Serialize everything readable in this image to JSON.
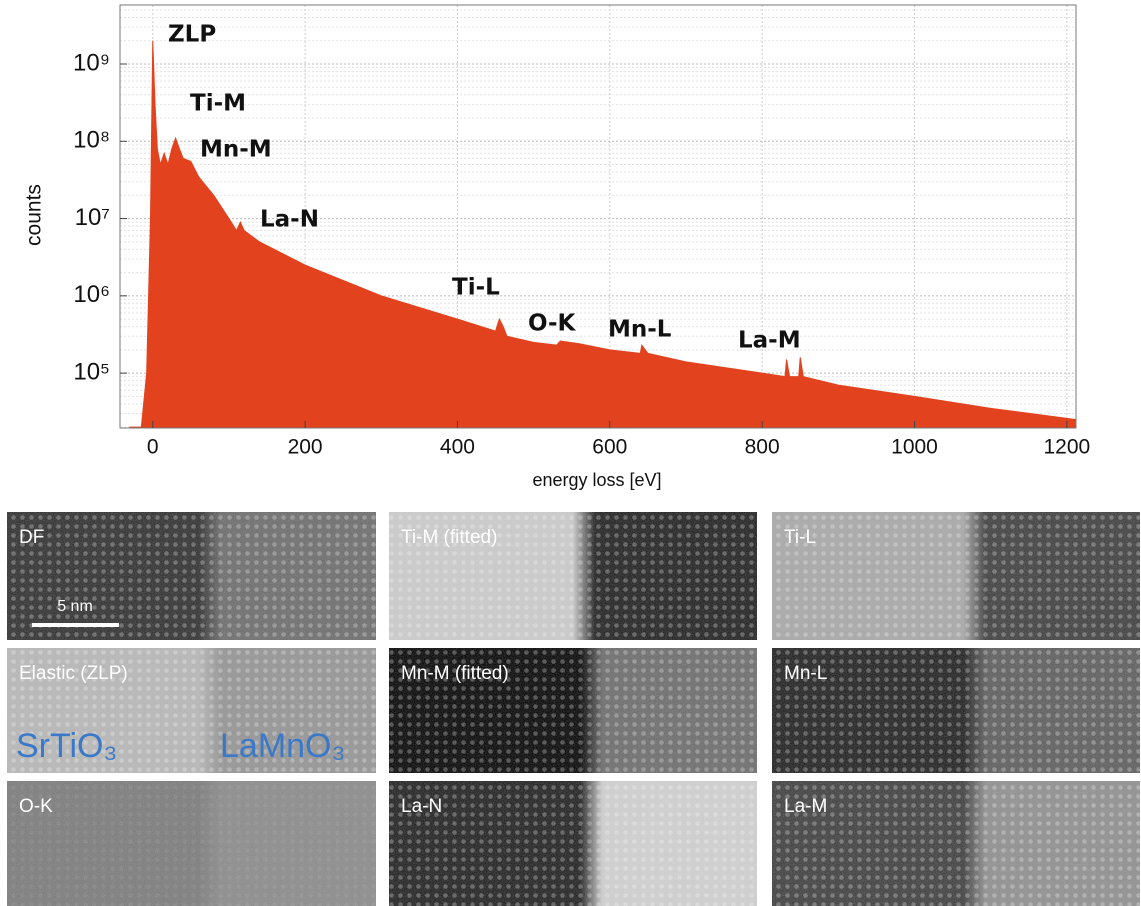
{
  "chart_data": {
    "type": "area",
    "x_label": "energy loss [eV]",
    "y_label": "counts",
    "log_y": true,
    "grid": true,
    "xlim": [
      -43,
      1212
    ],
    "ylim": [
      19500,
      5800000000
    ],
    "xticks": [
      0,
      200,
      400,
      600,
      800,
      1000,
      1200
    ],
    "yticks": [
      {
        "value": 100000,
        "label": "10⁵"
      },
      {
        "value": 1000000,
        "label": "10⁶"
      },
      {
        "value": 10000000,
        "label": "10⁷"
      },
      {
        "value": 100000000,
        "label": "10⁸"
      },
      {
        "value": 1000000000,
        "label": "10⁹"
      }
    ],
    "x": [
      -30,
      -15,
      -8,
      -3,
      0,
      3,
      6,
      10,
      15,
      20,
      25,
      30,
      35,
      40,
      50,
      60,
      80,
      100,
      110,
      115,
      120,
      140,
      200,
      300,
      400,
      450,
      455,
      460,
      465,
      500,
      530,
      535,
      560,
      600,
      640,
      642,
      650,
      700,
      800,
      830,
      832,
      836,
      848,
      850,
      854,
      900,
      1000,
      1100,
      1200,
      1212
    ],
    "series": [
      {
        "color": "#e2431e",
        "values": [
          20000,
          20000,
          100000,
          10000000,
          2000000000,
          300000000,
          80000000,
          50000000,
          70000000,
          50000000,
          80000000,
          110000000,
          80000000,
          60000000,
          55000000,
          35000000,
          20000000,
          10000000,
          7000000,
          9000000,
          7000000,
          5000000,
          2500000,
          1000000,
          500000,
          350000,
          500000,
          400000,
          300000,
          250000,
          230000,
          260000,
          240000,
          200000,
          180000,
          230000,
          180000,
          140000,
          100000,
          90000,
          150000,
          90000,
          90000,
          160000,
          90000,
          70000,
          50000,
          35000,
          26000,
          25000
        ]
      }
    ],
    "annotations": [
      "ZLP",
      "Ti-M",
      "Mn-M",
      "La-N",
      "Ti-L",
      "O-K",
      "Mn-L",
      "La-M"
    ]
  },
  "images": {
    "panels": [
      "DF",
      "Ti-M (fitted)",
      "Ti-L",
      "Elastic (ZLP)",
      "Mn-M (fitted)",
      "Mn-L",
      "O-K",
      "La-N",
      "La-M"
    ],
    "scale_bar": "5 nm",
    "materials": [
      "SrTiO₃",
      "LaMnO₃"
    ]
  }
}
